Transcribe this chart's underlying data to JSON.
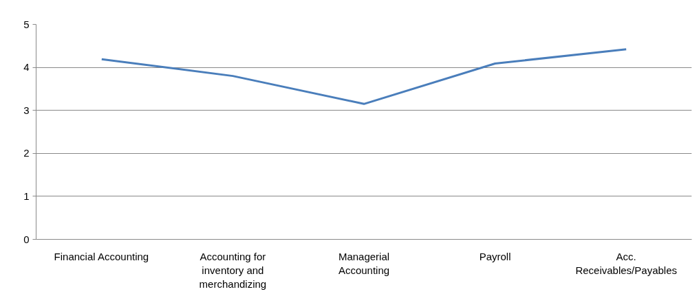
{
  "chart_data": {
    "type": "line",
    "categories": [
      "Financial Accounting",
      "Accounting for\ninventory and\nmerchandizing",
      "Managerial\nAccounting",
      "Payroll",
      "Acc.\nReceivables/Payables"
    ],
    "series": [
      {
        "color": "#4a7ebb",
        "values": [
          4.19,
          3.8,
          3.15,
          4.09,
          4.42
        ]
      }
    ],
    "ylim": [
      0,
      5
    ],
    "yticks": [
      0,
      1,
      2,
      3,
      4,
      5
    ],
    "grid": "y",
    "marker": "none",
    "line_style": "solid"
  }
}
